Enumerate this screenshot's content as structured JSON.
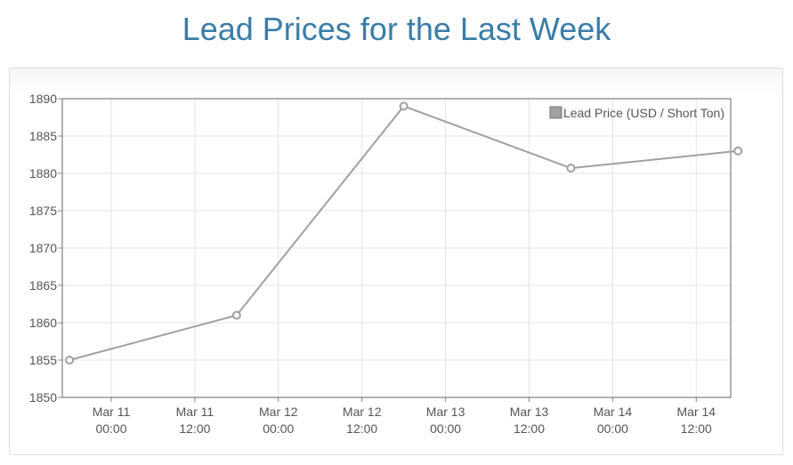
{
  "chart_data": {
    "type": "line",
    "title": "Lead Prices for the Last Week",
    "xlabel": "",
    "ylabel": "",
    "series": [
      {
        "name": "Lead Price (USD / Short Ton)",
        "color": "#a0a0a0",
        "points": [
          {
            "x": "2024-03-10T18:00",
            "y": 1855
          },
          {
            "x": "2024-03-11T18:00",
            "y": 1861
          },
          {
            "x": "2024-03-12T18:00",
            "y": 1889
          },
          {
            "x": "2024-03-13T18:00",
            "y": 1880.7
          },
          {
            "x": "2024-03-14T18:00",
            "y": 1883
          }
        ]
      }
    ],
    "x_ticks": [
      {
        "date": "Mar 11",
        "time": "00:00"
      },
      {
        "date": "Mar 11",
        "time": "12:00"
      },
      {
        "date": "Mar 12",
        "time": "00:00"
      },
      {
        "date": "Mar 12",
        "time": "12:00"
      },
      {
        "date": "Mar 13",
        "time": "00:00"
      },
      {
        "date": "Mar 13",
        "time": "12:00"
      },
      {
        "date": "Mar 14",
        "time": "00:00"
      },
      {
        "date": "Mar 14",
        "time": "12:00"
      }
    ],
    "y_ticks": [
      "1890",
      "1885",
      "1880",
      "1875",
      "1870",
      "1865",
      "1860",
      "1855",
      "1850"
    ],
    "ylim": [
      1850,
      1890
    ],
    "grid": true,
    "legend_position": "top-right"
  }
}
